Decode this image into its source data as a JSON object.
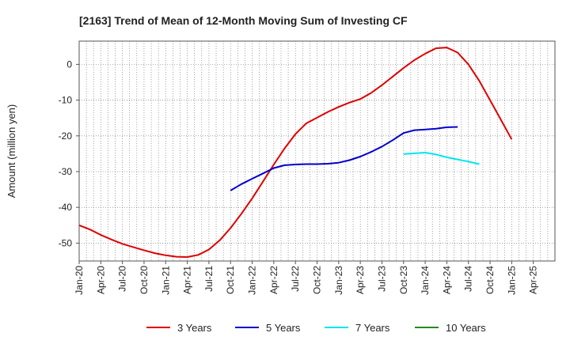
{
  "chart_data": {
    "type": "line",
    "title": "[2163]  Trend of Mean of 12-Month Moving Sum of Investing CF",
    "ylabel": "Amount (million yen)",
    "xlabel": "",
    "x_ticks": [
      "Jan-20",
      "Apr-20",
      "Jul-20",
      "Oct-20",
      "Jan-21",
      "Apr-21",
      "Jul-21",
      "Oct-21",
      "Jan-22",
      "Apr-22",
      "Jul-22",
      "Oct-22",
      "Jan-23",
      "Apr-23",
      "Jul-23",
      "Oct-23",
      "Jan-24",
      "Apr-24",
      "Jul-24",
      "Oct-24",
      "Jan-25",
      "Apr-25"
    ],
    "y_ticks": [
      0,
      -10,
      -20,
      -30,
      -40,
      -50
    ],
    "ylim": [
      -55,
      6.5
    ],
    "grid": true,
    "legend_position": "bottom",
    "series": [
      {
        "name": "3 Years",
        "color": "#dd0000",
        "start": "Jan-20",
        "values": [
          -45.0,
          -46.2,
          -47.7,
          -49.0,
          -50.2,
          -51.1,
          -52.0,
          -52.8,
          -53.4,
          -53.8,
          -53.9,
          -53.3,
          -51.8,
          -49.2,
          -45.8,
          -41.8,
          -37.5,
          -32.8,
          -28.0,
          -23.5,
          -19.5,
          -16.5,
          -14.9,
          -13.3,
          -11.9,
          -10.7,
          -9.7,
          -8.0,
          -5.8,
          -3.4,
          -1.0,
          1.2,
          3.0,
          4.5,
          4.7,
          3.3,
          0.0,
          -4.6,
          -10.0,
          -15.5,
          -21.0
        ]
      },
      {
        "name": "5 Years",
        "color": "#0000cc",
        "start": "Oct-21",
        "values": [
          -35.3,
          -33.5,
          -32.0,
          -30.5,
          -29.0,
          -28.2,
          -28.0,
          -27.9,
          -27.9,
          -27.8,
          -27.5,
          -26.8,
          -25.8,
          -24.5,
          -23.0,
          -21.2,
          -19.2,
          -18.4,
          -18.2,
          -18.0,
          -17.6,
          -17.5
        ]
      },
      {
        "name": "7 Years",
        "color": "#00e5ee",
        "start": "Oct-23",
        "values": [
          -25.1,
          -24.9,
          -24.7,
          -25.2,
          -26.0,
          -26.6,
          -27.2,
          -27.9
        ]
      },
      {
        "name": "10 Years",
        "color": "#228b22",
        "start": "",
        "values": []
      }
    ]
  }
}
